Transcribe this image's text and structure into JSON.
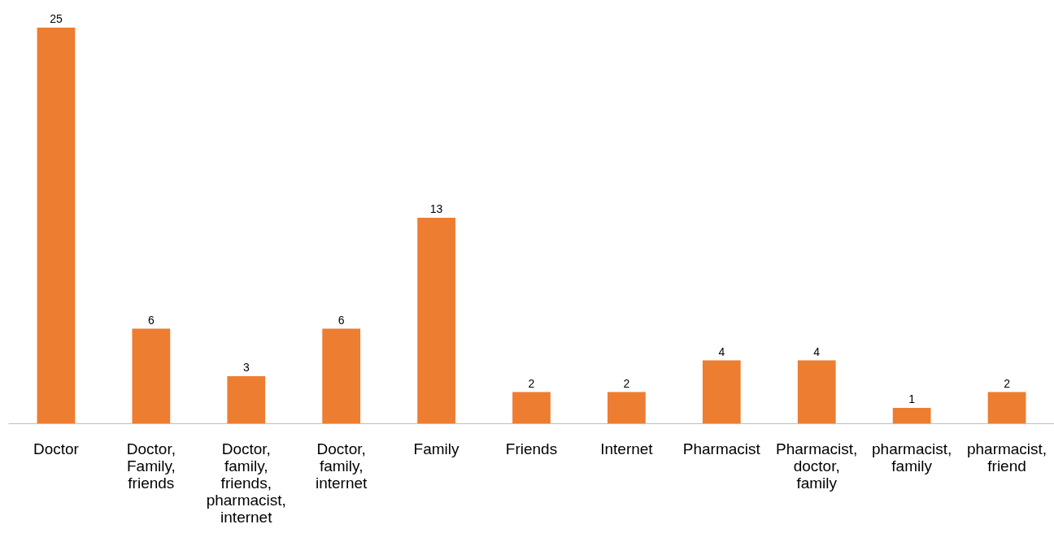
{
  "chart_data": {
    "type": "bar",
    "categories": [
      "Doctor",
      "Doctor,\nFamily,\nfriends",
      "Doctor,\nfamily,\nfriends,\npharmacist,\ninternet",
      "Doctor,\nfamily,\ninternet",
      "Family",
      "Friends",
      "Internet",
      "Pharmacist",
      "Pharmacist,\ndoctor,\nfamily",
      "pharmacist,\nfamily",
      "pharmacist,\nfriend"
    ],
    "values": [
      25,
      6,
      3,
      6,
      13,
      2,
      2,
      4,
      4,
      1,
      2
    ],
    "color": "#ed7d31",
    "data_labels": true,
    "tick_labels": "x"
  }
}
